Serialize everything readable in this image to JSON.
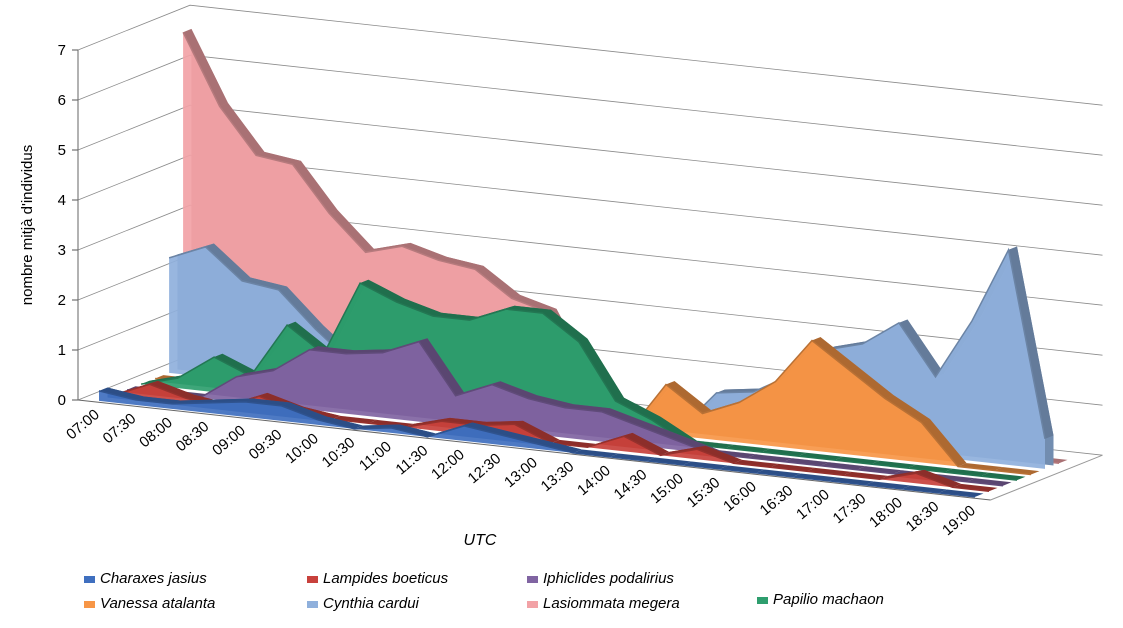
{
  "chart_data": {
    "type": "area",
    "y_label": "nombre mitjà d'individus",
    "x_label": "UTC",
    "categories": [
      "07:00",
      "07:30",
      "08:00",
      "08:30",
      "09:00",
      "09:30",
      "10:00",
      "10:30",
      "11:00",
      "11:30",
      "12:00",
      "12:30",
      "13:00",
      "13:30",
      "14:00",
      "14:30",
      "15:00",
      "15:30",
      "16:00",
      "16:30",
      "17:00",
      "17:30",
      "18:00",
      "18:30",
      "19:00"
    ],
    "series": [
      {
        "name": "Charaxes jasius",
        "color": "#3f6fbf",
        "values": [
          0.2,
          0.1,
          0.1,
          0.2,
          0.3,
          0.3,
          0.1,
          0,
          0.1,
          0,
          0.3,
          0.2,
          0.1,
          0,
          0,
          0,
          0,
          0,
          0,
          0,
          0,
          0,
          0,
          0,
          0
        ]
      },
      {
        "name": "Lampides boeticus",
        "color": "#c8413c",
        "values": [
          0,
          0.3,
          0.1,
          0,
          0.3,
          0.1,
          0,
          0,
          0,
          0.2,
          0.2,
          0.3,
          0,
          0,
          0.3,
          0,
          0.2,
          0,
          0,
          0,
          0,
          0,
          0.2,
          0,
          0
        ]
      },
      {
        "name": "Iphiclides podalirius",
        "color": "#8064a2",
        "values": [
          0,
          0,
          0,
          0.5,
          0.7,
          1.2,
          1.2,
          1.3,
          1.6,
          0.6,
          0.9,
          0.7,
          0.6,
          0.6,
          0.4,
          0.2,
          0,
          0,
          0,
          0,
          0,
          0,
          0,
          0,
          0
        ]
      },
      {
        "name": "Vanessa atalanta",
        "color": "#f79646",
        "values": [
          0,
          0,
          0,
          0,
          0,
          0,
          0,
          0,
          0,
          0,
          0,
          0,
          0,
          0,
          1,
          0.5,
          0.8,
          1.3,
          2.2,
          1.7,
          1.2,
          0.8,
          0,
          0,
          0
        ]
      },
      {
        "name": "Cynthia cardui",
        "color": "#8fb0dc",
        "values": [
          2.3,
          2.6,
          2,
          1.9,
          1.2,
          0.6,
          0,
          0,
          0,
          0,
          0,
          0,
          0,
          0,
          0,
          0.8,
          0.9,
          1.3,
          1.9,
          2.1,
          2.6,
          1.6,
          2.8,
          4.3,
          0.6
        ]
      },
      {
        "name": "Lasiommata megera",
        "color": "#f2a2a6",
        "values": [
          6.7,
          5.3,
          4.4,
          4.3,
          3.4,
          2.7,
          2.9,
          2.7,
          2.6,
          2.1,
          1.9,
          0.6,
          0,
          0,
          0,
          0,
          0,
          0,
          0,
          0,
          0,
          0,
          0,
          0,
          0
        ]
      },
      {
        "name": "Papilio machaon",
        "color": "#2e9e6e",
        "values": [
          0,
          0.2,
          0.7,
          0.4,
          1.5,
          1,
          2.5,
          2.2,
          2,
          2,
          2.3,
          2.3,
          1.8,
          0.7,
          0.4,
          0,
          0,
          0,
          0,
          0,
          0,
          0,
          0,
          0,
          0
        ]
      }
    ],
    "ylim": [
      0,
      7
    ],
    "yticks": [
      0,
      1,
      2,
      3,
      4,
      5,
      6,
      7
    ],
    "grid": true
  }
}
